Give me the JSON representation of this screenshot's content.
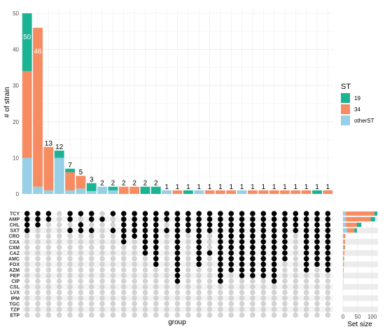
{
  "chart_data": {
    "type": "bar",
    "subtype": "upset",
    "ylabel": "# of strain",
    "xlabel": "group",
    "ylim": [
      0,
      50
    ],
    "yticks": [
      0,
      10,
      20,
      30,
      40,
      50
    ],
    "legend": {
      "title": "ST",
      "placement": "right",
      "entries": [
        {
          "label": "19",
          "color": "#1ab394"
        },
        {
          "label": "34",
          "color": "#f78c62"
        },
        {
          "label": "otherST",
          "color": "#96cfe6"
        }
      ]
    },
    "colors": {
      "19": "#1ab394",
      "34": "#f78c62",
      "otherST": "#96cfe6"
    },
    "sets": [
      "TCY",
      "AMP",
      "CHL",
      "SXT",
      "CRO",
      "CXA",
      "CXM",
      "CAZ",
      "AMC",
      "FOX",
      "AZM",
      "FEP",
      "CIP",
      "CSL",
      "LVX",
      "IPM",
      "TGC",
      "TZP",
      "ETP"
    ],
    "set_size_xlabel": "Set size",
    "set_size_ticks": [
      0,
      50,
      100
    ],
    "set_size_xlim": [
      0,
      120
    ],
    "set_sizes": [
      {
        "otherST": 10,
        "34": 98,
        "19": 10
      },
      {
        "otherST": 10,
        "34": 85,
        "19": 15
      },
      {
        "otherST": 10,
        "34": 38,
        "19": 15
      },
      {
        "otherST": 14,
        "34": 25,
        "19": 9
      },
      {
        "otherST": 1,
        "34": 6,
        "19": 1
      },
      {
        "otherST": 1,
        "34": 6,
        "19": 0
      },
      {
        "otherST": 1,
        "34": 5,
        "19": 1
      },
      {
        "otherST": 1,
        "34": 4,
        "19": 0
      },
      {
        "otherST": 0,
        "34": 3,
        "19": 1
      },
      {
        "otherST": 0,
        "34": 3,
        "19": 0
      },
      {
        "otherST": 0,
        "34": 2,
        "19": 0
      },
      {
        "otherST": 0,
        "34": 1,
        "19": 0
      },
      {
        "otherST": 0,
        "34": 1,
        "19": 0
      },
      {
        "otherST": 0,
        "34": 0,
        "19": 0
      },
      {
        "otherST": 0,
        "34": 0,
        "19": 0
      },
      {
        "otherST": 0,
        "34": 0,
        "19": 0
      },
      {
        "otherST": 0,
        "34": 0,
        "19": 0
      },
      {
        "otherST": 0,
        "34": 0,
        "19": 0
      },
      {
        "otherST": 0,
        "34": 0,
        "19": 0
      }
    ],
    "intersections": [
      {
        "total": 50,
        "label": "50",
        "otherST": 10,
        "34": 24,
        "19": 16,
        "sets": [
          0,
          1,
          2,
          3
        ]
      },
      {
        "total": 46,
        "label": "46",
        "otherST": 2,
        "34": 44,
        "19": 0,
        "sets": [
          0,
          1,
          2
        ]
      },
      {
        "total": 13,
        "label": "13",
        "otherST": 1,
        "34": 12,
        "19": 0,
        "sets": [
          0,
          1
        ]
      },
      {
        "total": 12,
        "label": "12",
        "otherST": 10,
        "34": 0,
        "19": 2,
        "sets": []
      },
      {
        "total": 7,
        "label": "7",
        "otherST": 1,
        "34": 5,
        "19": 1,
        "sets": [
          0,
          1,
          3
        ]
      },
      {
        "total": 5,
        "label": "5",
        "otherST": 1.5,
        "34": 3.5,
        "19": 0,
        "sets": [
          0,
          2,
          3
        ]
      },
      {
        "total": 3,
        "label": "3",
        "otherST": 0.8,
        "34": 0,
        "19": 2.2,
        "sets": [
          0,
          1,
          3
        ]
      },
      {
        "total": 2,
        "label": "2",
        "otherST": 2,
        "34": 0,
        "19": 0,
        "sets": [
          1
        ]
      },
      {
        "total": 2,
        "label": "2",
        "otherST": 1,
        "34": 0,
        "19": 1,
        "sets": [
          0,
          3
        ]
      },
      {
        "total": 2,
        "label": "2",
        "otherST": 0,
        "34": 2,
        "19": 0,
        "sets": [
          0,
          1,
          2,
          3,
          4,
          5
        ]
      },
      {
        "total": 2,
        "label": "2",
        "otherST": 0,
        "34": 2,
        "19": 0,
        "sets": [
          0,
          1,
          2,
          3,
          4
        ]
      },
      {
        "total": 2,
        "label": "2",
        "otherST": 0,
        "34": 0,
        "19": 2,
        "sets": [
          0,
          1,
          2,
          3,
          4,
          5,
          6,
          7
        ]
      },
      {
        "total": 2,
        "label": "2",
        "otherST": 0,
        "34": 0,
        "19": 2,
        "sets": [
          0,
          1,
          2,
          3,
          4,
          5,
          6,
          7,
          8,
          9
        ]
      },
      {
        "total": 1,
        "label": "1",
        "otherST": 1,
        "34": 0,
        "19": 0,
        "sets": [
          0,
          1,
          3
        ]
      },
      {
        "total": 1,
        "label": "1",
        "otherST": 0,
        "34": 1,
        "19": 0,
        "sets": [
          0,
          1,
          2,
          3,
          4,
          5,
          6,
          7,
          8,
          9,
          10,
          11,
          12
        ]
      },
      {
        "total": 1,
        "label": "1",
        "otherST": 0,
        "34": 0,
        "19": 1,
        "sets": [
          0,
          1,
          2,
          3
        ]
      },
      {
        "total": 1,
        "label": "1",
        "otherST": 1,
        "34": 0,
        "19": 0,
        "sets": [
          0,
          1,
          2,
          3,
          4,
          5,
          6,
          7,
          8,
          9
        ]
      },
      {
        "total": 1,
        "label": "1",
        "otherST": 0,
        "34": 1,
        "19": 0,
        "sets": [
          0,
          1,
          2,
          3,
          7
        ]
      },
      {
        "total": 1,
        "label": "1",
        "otherST": 0,
        "34": 1,
        "19": 0,
        "sets": [
          0,
          1,
          2,
          3,
          4,
          5,
          6,
          7,
          8,
          9,
          10,
          11,
          12
        ]
      },
      {
        "total": 1,
        "label": "1",
        "otherST": 0,
        "34": 1,
        "19": 0,
        "sets": [
          0,
          1,
          2,
          3,
          4,
          5,
          6,
          7,
          8,
          9,
          10
        ]
      },
      {
        "total": 1,
        "label": "1",
        "otherST": 1,
        "34": 0,
        "19": 0,
        "sets": [
          0,
          1,
          2,
          3,
          4,
          5,
          6,
          7,
          8,
          9,
          10,
          11
        ]
      },
      {
        "total": 1,
        "label": "1",
        "otherST": 0,
        "34": 1,
        "19": 0,
        "sets": [
          0,
          1,
          2,
          3,
          4,
          5,
          6,
          7,
          8,
          9,
          10,
          11
        ]
      },
      {
        "total": 1,
        "label": "1",
        "otherST": 0,
        "34": 1,
        "19": 0,
        "sets": [
          0,
          1,
          2,
          3,
          4,
          5,
          6,
          7,
          8,
          9,
          10,
          11
        ]
      },
      {
        "total": 1,
        "label": "1",
        "otherST": 0,
        "34": 1,
        "19": 0,
        "sets": [
          0,
          1,
          2,
          3,
          4,
          5,
          6,
          7,
          8,
          9,
          10,
          11,
          12
        ]
      },
      {
        "total": 1,
        "label": "1",
        "otherST": 0,
        "34": 1,
        "19": 0,
        "sets": [
          0,
          1,
          2,
          3,
          4,
          5,
          6,
          7,
          8
        ]
      },
      {
        "total": 1,
        "label": "1",
        "otherST": 0,
        "34": 1,
        "19": 0,
        "sets": [
          0,
          1,
          2,
          3
        ]
      },
      {
        "total": 1,
        "label": "1",
        "otherST": 0,
        "34": 1,
        "19": 0,
        "sets": [
          0,
          1,
          2,
          3,
          4,
          5,
          6,
          7,
          8,
          9,
          10
        ]
      },
      {
        "total": 1,
        "label": "1",
        "otherST": 0,
        "34": 0,
        "19": 1,
        "sets": [
          0,
          1,
          2,
          3,
          4,
          5,
          6,
          7,
          8,
          9
        ]
      },
      {
        "total": 1,
        "label": "1",
        "otherST": 0,
        "34": 1,
        "19": 0,
        "sets": [
          0,
          1,
          2,
          3,
          4,
          5,
          6,
          7,
          8,
          9,
          10
        ]
      }
    ]
  }
}
